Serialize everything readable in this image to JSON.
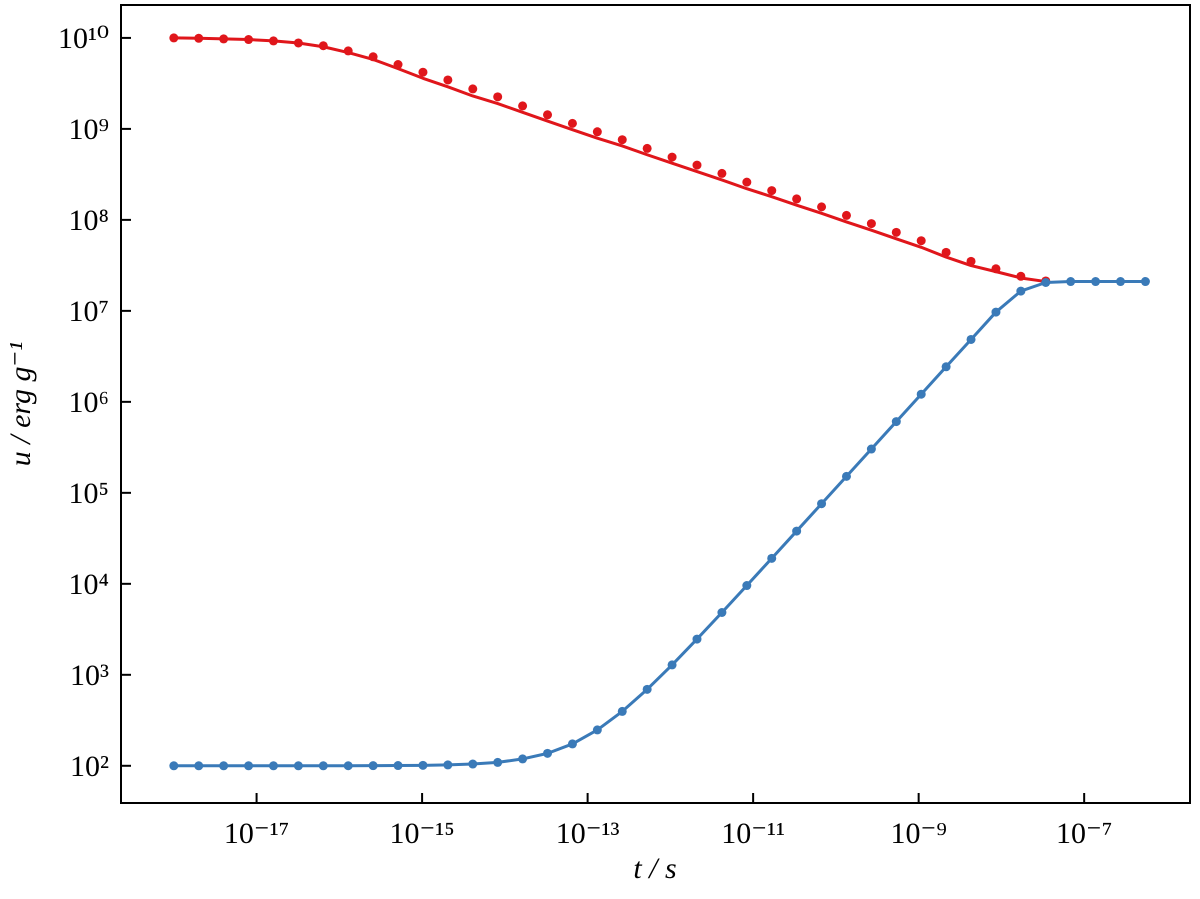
{
  "chart_data": {
    "type": "line",
    "x_label": "t / s",
    "y_label": "u / erg g⁻¹",
    "x_scale": "log",
    "y_scale": "log",
    "xlim": [
      2.3e-19,
      1.9e-06
    ],
    "ylim": [
      39,
      23000000000.0
    ],
    "xticks": [
      {
        "value": 1e-17,
        "label": "10⁻¹⁷"
      },
      {
        "value": 1e-15,
        "label": "10⁻¹⁵"
      },
      {
        "value": 1e-13,
        "label": "10⁻¹³"
      },
      {
        "value": 1e-11,
        "label": "10⁻¹¹"
      },
      {
        "value": 1e-09,
        "label": "10⁻⁹"
      },
      {
        "value": 1e-07,
        "label": "10⁻⁷"
      }
    ],
    "yticks": [
      {
        "value": 100,
        "label": "10²"
      },
      {
        "value": 1000,
        "label": "10³"
      },
      {
        "value": 10000,
        "label": "10⁴"
      },
      {
        "value": 100000,
        "label": "10⁵"
      },
      {
        "value": 1000000,
        "label": "10⁶"
      },
      {
        "value": 10000000,
        "label": "10⁷"
      },
      {
        "value": 100000000,
        "label": "10⁸"
      },
      {
        "value": 1000000000,
        "label": "10⁹"
      },
      {
        "value": 10000000000,
        "label": "10¹⁰"
      }
    ],
    "x": [
      1e-18,
      2e-18,
      4e-18,
      8e-18,
      1.6e-17,
      3.2e-17,
      6.4e-17,
      1.28e-16,
      2.56e-16,
      5.12e-16,
      1.024e-15,
      2.048e-15,
      4.096e-15,
      8.192e-15,
      1.6384e-14,
      3.2768e-14,
      6.5536e-14,
      1.31072e-13,
      2.62144e-13,
      5.24288e-13,
      1.048576e-12,
      2.097152e-12,
      4.194304e-12,
      8.388608e-12,
      1.6777216e-11,
      3.3554432e-11,
      6.7108864e-11,
      1.34217728e-10,
      2.68435456e-10,
      5.36870912e-10,
      1.073741824e-09,
      2.147483648e-09,
      4.294967296e-09,
      8.589934592e-09,
      1.7179869184e-08,
      3.4359738368e-08,
      6.8719476736e-08,
      1.37438953472e-07,
      2.74877906944e-07,
      5.49755813888e-07
    ],
    "series": [
      {
        "style": "line",
        "color": "#e0161b",
        "values": [
          10000000000.0,
          9900000000.0,
          9750000000.0,
          9600000000.0,
          9270000000.0,
          8800000000.0,
          8000000000.0,
          6900000000.0,
          5800000000.0,
          4600000000.0,
          3600000000.0,
          2900000000.0,
          2300000000.0,
          1900000000.0,
          1520000000.0,
          1220000000.0,
          980000000.0,
          790000000.0,
          650000000.0,
          520000000.0,
          420000000.0,
          340000000.0,
          275000000.0,
          220000000.0,
          180000000.0,
          145000000.0,
          118000000.0,
          95000000.0,
          77000000.0,
          62000000.0,
          50000000.0,
          39000000.0,
          31500000.0,
          27000000.0,
          23000000.0,
          21000000.0,
          null,
          null,
          null,
          null
        ]
      },
      {
        "style": "markers",
        "color": "#e0161b",
        "values": [
          10000000000.0,
          9900000000.0,
          9750000000.0,
          9600000000.0,
          9270000000.0,
          8800000000.0,
          8200000000.0,
          7200000000.0,
          6200000000.0,
          5100000000.0,
          4200000000.0,
          3450000000.0,
          2750000000.0,
          2250000000.0,
          1790000000.0,
          1430000000.0,
          1150000000.0,
          930000000.0,
          760000000.0,
          610000000.0,
          490000000.0,
          400000000.0,
          324000000.0,
          260000000.0,
          210000000.0,
          170000000.0,
          139000000.0,
          112000000.0,
          91000000.0,
          73000000.0,
          59000000.0,
          44000000.0,
          35000000.0,
          29000000.0,
          24000000.0,
          21300000.0,
          null,
          null,
          null,
          null
        ]
      },
      {
        "style": "line",
        "color": "#3a7ab8",
        "values": [
          100,
          100,
          100,
          100,
          100,
          100,
          100,
          100.1,
          100.3,
          100.6,
          101.2,
          102.3,
          104.6,
          109,
          119,
          137,
          174,
          248,
          396,
          692,
          1285,
          2470,
          4840,
          9580,
          19060,
          38000,
          75900,
          151700,
          303000,
          606800,
          1213000,
          2430000,
          4850000,
          9700000,
          16500000,
          20500000,
          21000000,
          21000000,
          21000000,
          21000000
        ]
      },
      {
        "style": "markers",
        "color": "#3a7ab8",
        "values": [
          100,
          100,
          100,
          100,
          100,
          100,
          100,
          100.1,
          100.3,
          100.6,
          101.2,
          102.3,
          104.6,
          109,
          119,
          137,
          174,
          248,
          396,
          692,
          1285,
          2470,
          4840,
          9580,
          19060,
          38000,
          75900,
          151700,
          303000,
          606800,
          1213000,
          2430000,
          4850000,
          9700000,
          16500000,
          20500000,
          21000000,
          21000000,
          21000000,
          21000000
        ]
      }
    ]
  }
}
